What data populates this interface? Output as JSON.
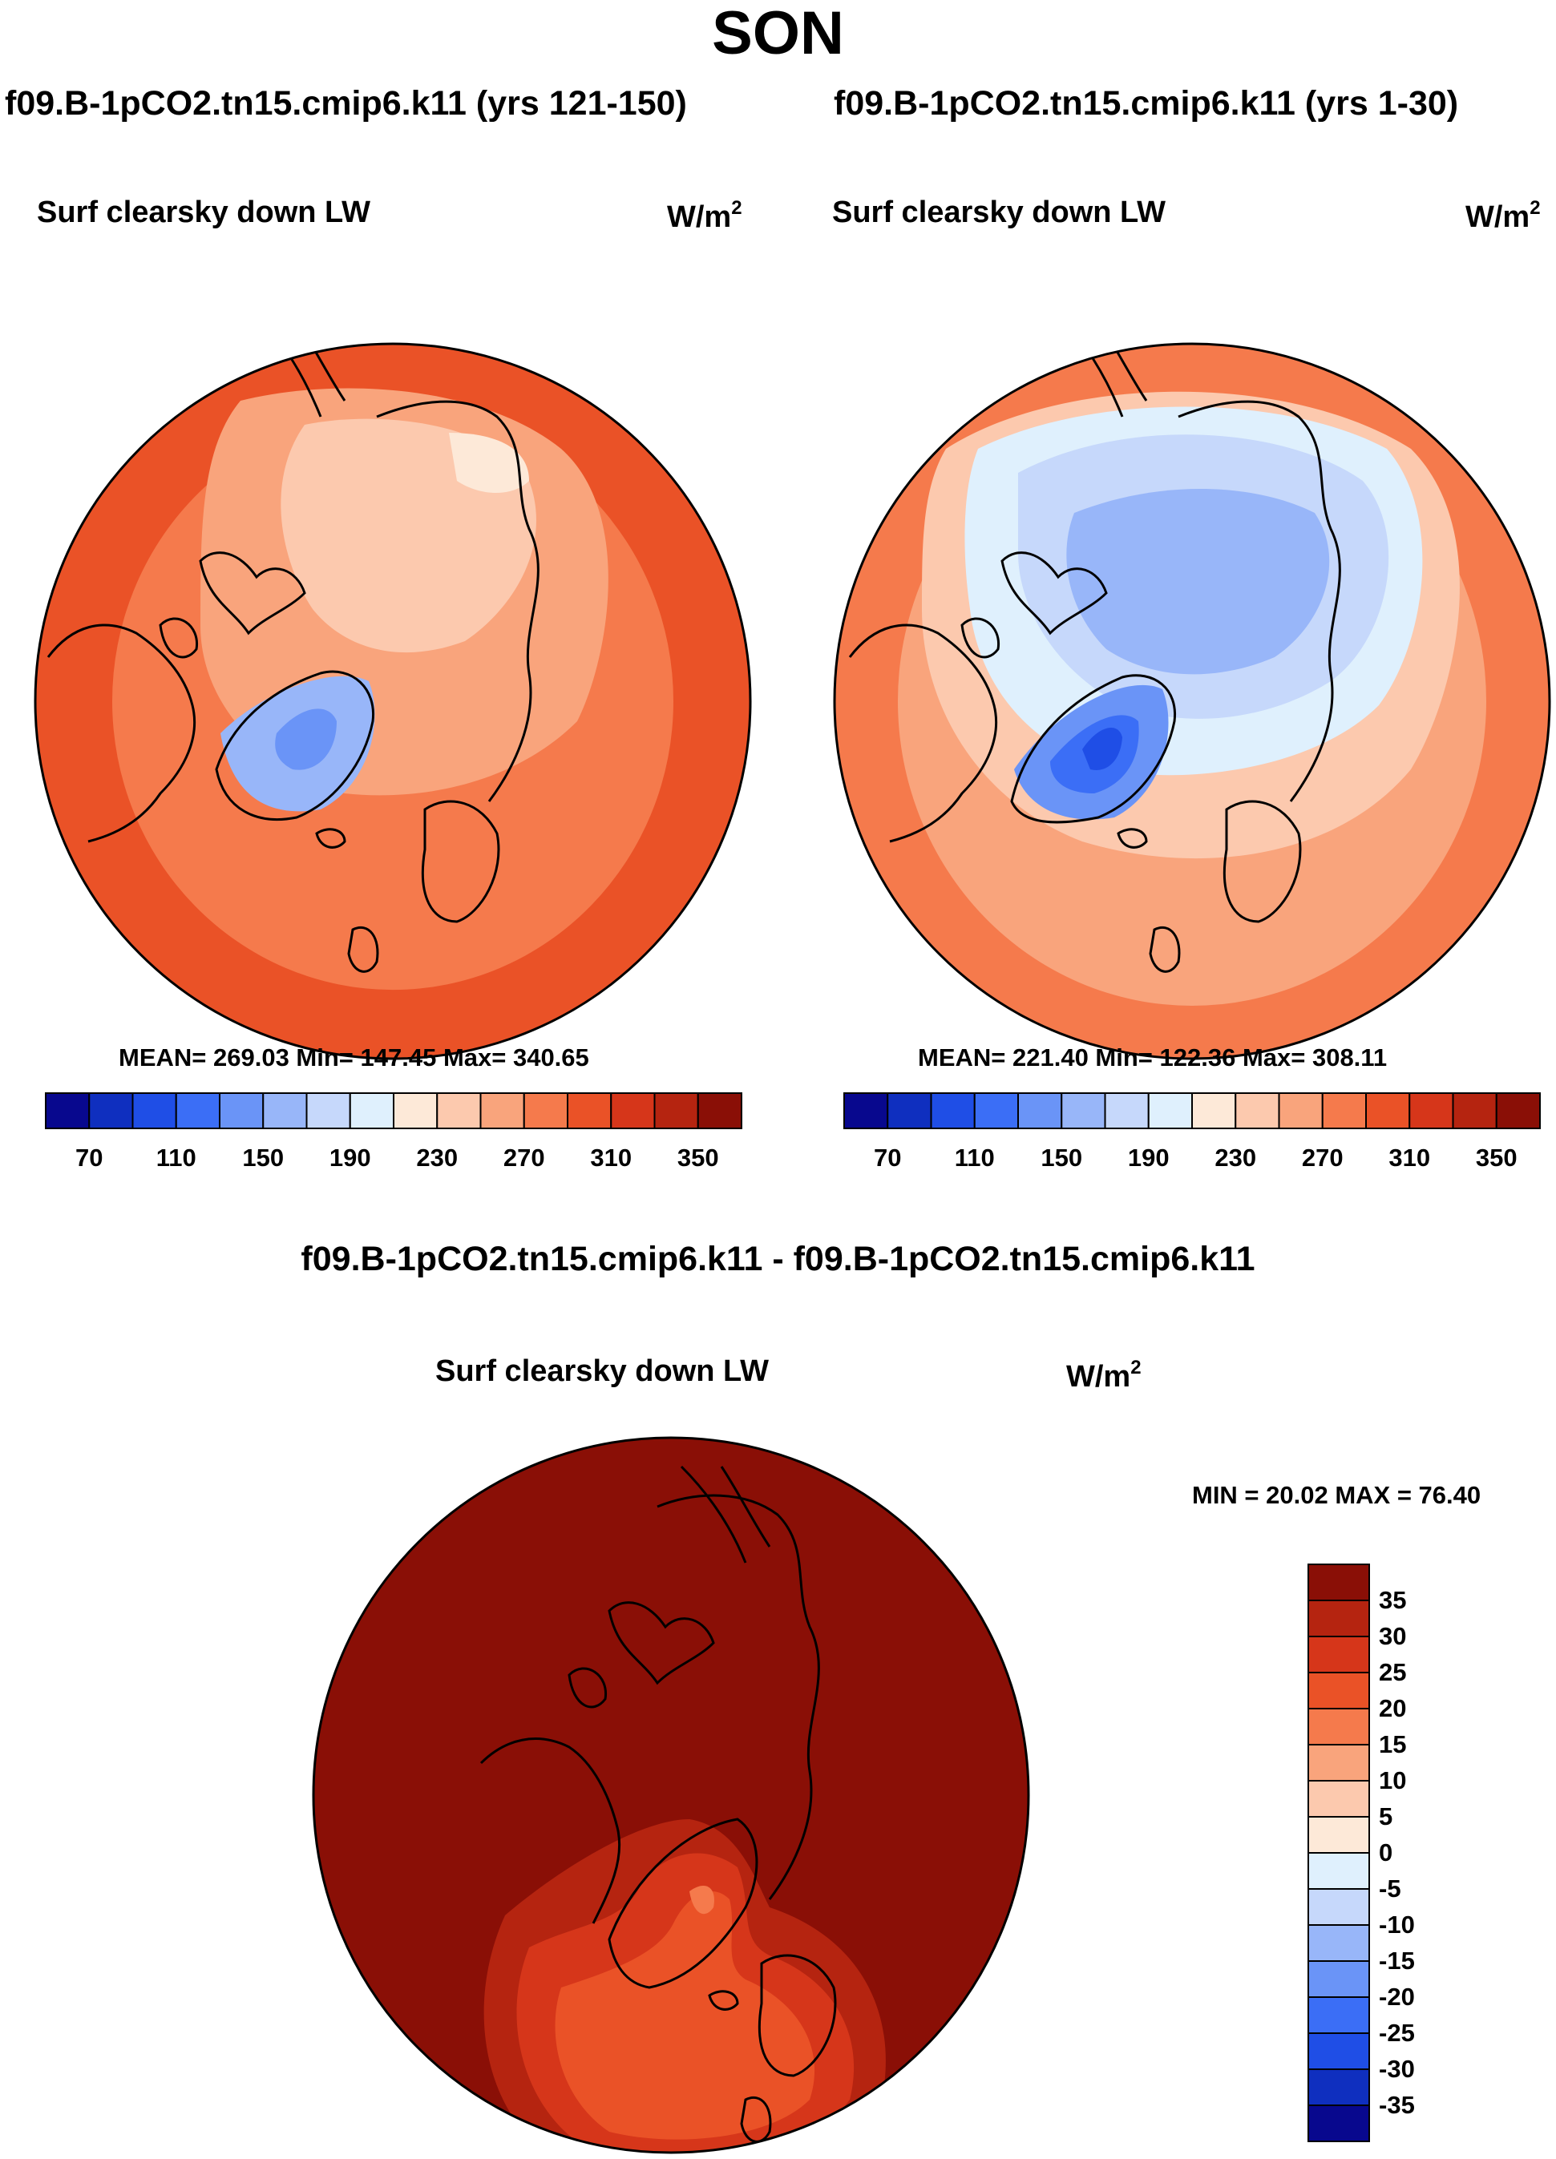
{
  "figure": {
    "season": "SON",
    "variable": "Surf clearsky down LW",
    "units": "W/m",
    "units_sup": "2"
  },
  "chart_data": [
    {
      "type": "heatmap",
      "projection": "north-polar-stereographic",
      "title": "f09.B-1pCO2.tn15.cmip6.k11 (yrs 121-150)",
      "subtitle": "Surf clearsky down LW",
      "units": "W/m2",
      "stats_text": "MEAN= 269.03  Min= 147.45  Max= 340.65",
      "mean": 269.03,
      "min": 147.45,
      "max": 340.65,
      "colorbar_levels": [
        70,
        90,
        110,
        130,
        150,
        170,
        190,
        210,
        230,
        250,
        270,
        290,
        310,
        330,
        350
      ],
      "colorbar_tick_labels": [
        "70",
        "110",
        "150",
        "190",
        "230",
        "270",
        "310",
        "350"
      ],
      "colors": [
        "#08088e",
        "#0f2fbf",
        "#1f4ee6",
        "#3b6ef6",
        "#6a94f7",
        "#98b6f9",
        "#c6d8fb",
        "#dff0fd",
        "#fde9d8",
        "#fcc9ae",
        "#f9a47c",
        "#f57a4c",
        "#ea5227",
        "#d6361a",
        "#b52410",
        "#8a0f06"
      ]
    },
    {
      "type": "heatmap",
      "projection": "north-polar-stereographic",
      "title": "f09.B-1pCO2.tn15.cmip6.k11 (yrs 1-30)",
      "subtitle": "Surf clearsky down LW",
      "units": "W/m2",
      "stats_text": "MEAN= 221.40  Min= 122.36  Max= 308.11",
      "mean": 221.4,
      "min": 122.36,
      "max": 308.11,
      "colorbar_levels": [
        70,
        90,
        110,
        130,
        150,
        170,
        190,
        210,
        230,
        250,
        270,
        290,
        310,
        330,
        350
      ],
      "colorbar_tick_labels": [
        "70",
        "110",
        "150",
        "190",
        "230",
        "270",
        "310",
        "350"
      ],
      "colors": [
        "#08088e",
        "#0f2fbf",
        "#1f4ee6",
        "#3b6ef6",
        "#6a94f7",
        "#98b6f9",
        "#c6d8fb",
        "#dff0fd",
        "#fde9d8",
        "#fcc9ae",
        "#f9a47c",
        "#f57a4c",
        "#ea5227",
        "#d6361a",
        "#b52410",
        "#8a0f06"
      ]
    },
    {
      "type": "heatmap",
      "projection": "north-polar-stereographic",
      "title": "f09.B-1pCO2.tn15.cmip6.k11 - f09.B-1pCO2.tn15.cmip6.k11",
      "subtitle": "Surf clearsky down LW",
      "units": "W/m2",
      "stats_text": "MIN =  20.02 MAX =  76.40",
      "min": 20.02,
      "max": 76.4,
      "colorbar_levels": [
        -35,
        -30,
        -25,
        -20,
        -15,
        -10,
        -5,
        0,
        5,
        10,
        15,
        20,
        25,
        30,
        35
      ],
      "colorbar_tick_labels": [
        "35",
        "30",
        "25",
        "20",
        "15",
        "10",
        "5",
        "0",
        "-5",
        "-10",
        "-15",
        "-20",
        "-25",
        "-30",
        "-35"
      ],
      "colors": [
        "#8a0f06",
        "#b52410",
        "#d6361a",
        "#ea5227",
        "#f57a4c",
        "#f9a47c",
        "#fcc9ae",
        "#fde9d8",
        "#dff0fd",
        "#c6d8fb",
        "#98b6f9",
        "#6a94f7",
        "#3b6ef6",
        "#1f4ee6",
        "#0f2fbf",
        "#08088e"
      ]
    }
  ]
}
